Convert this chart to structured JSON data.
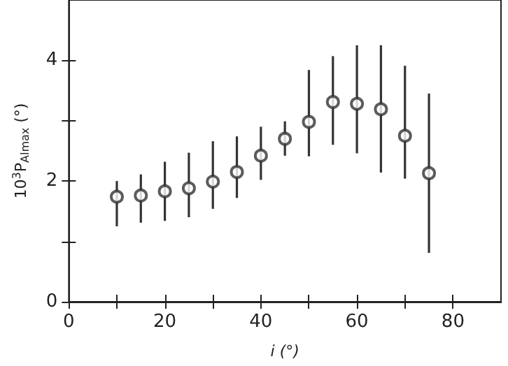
{
  "chart_data": {
    "type": "scatter",
    "xlabel": "i (°)",
    "ylabel": "10$^{3}$P$_{Almax}$ (°)",
    "x": [
      10,
      15,
      20,
      25,
      30,
      35,
      40,
      45,
      50,
      55,
      60,
      65,
      70,
      75
    ],
    "values": [
      1.74,
      1.76,
      1.83,
      1.88,
      1.99,
      2.15,
      2.42,
      2.7,
      2.98,
      3.31,
      3.28,
      3.19,
      2.75,
      2.13
    ],
    "errors": [
      [
        1.25,
        2.0
      ],
      [
        1.31,
        2.11
      ],
      [
        1.34,
        2.32
      ],
      [
        1.4,
        2.47
      ],
      [
        1.54,
        2.66
      ],
      [
        1.72,
        2.74
      ],
      [
        2.02,
        2.9
      ],
      [
        2.42,
        2.99
      ],
      [
        2.41,
        3.84
      ],
      [
        2.6,
        4.07
      ],
      [
        2.46,
        4.25
      ],
      [
        2.14,
        4.25
      ],
      [
        2.04,
        3.91
      ],
      [
        0.81,
        3.45
      ]
    ],
    "color": "#333333",
    "marker": "circle",
    "grid": false,
    "xlim": [
      0,
      90
    ],
    "xticks": [
      0,
      {
        "value": 10,
        "label": null
      },
      20,
      {
        "value": 30,
        "label": null
      },
      40,
      {
        "value": 50,
        "label": null
      },
      60,
      {
        "value": 70,
        "label": null
      },
      80
    ],
    "ylim": [
      0,
      5
    ],
    "yticks": [
      0,
      {
        "value": 1,
        "label": null
      },
      2,
      {
        "value": 3,
        "label": null
      },
      4
    ]
  }
}
